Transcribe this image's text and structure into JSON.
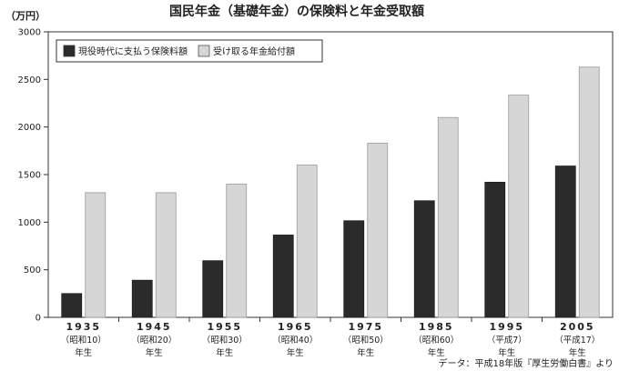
{
  "chart_data": {
    "type": "bar",
    "title": "国民年金（基礎年金）の保険料と年金受取額",
    "unit_label": "（万円）",
    "ylim": [
      0,
      3000
    ],
    "yticks": [
      "0",
      "500",
      "1000",
      "1500",
      "2000",
      "2500",
      "3000"
    ],
    "categories": [
      "1935",
      "1945",
      "1955",
      "1965",
      "1975",
      "1985",
      "1995",
      "2005"
    ],
    "category_eras": [
      "（昭和10）",
      "（昭和20）",
      "（昭和30）",
      "（昭和40）",
      "（昭和50）",
      "（昭和60）",
      "（平成7）",
      "（平成17）"
    ],
    "category_suffix": "年生",
    "series": [
      {
        "name": "現役時代に支払う保険料額",
        "color": "#2b2b2b",
        "values": [
          250,
          390,
          595,
          865,
          1015,
          1225,
          1420,
          1590
        ]
      },
      {
        "name": "受け取る年金給付額",
        "color": "#d6d6d6",
        "values": [
          1310,
          1310,
          1400,
          1600,
          1830,
          2100,
          2335,
          2630
        ]
      }
    ],
    "legend_position": "top-left",
    "grid": false,
    "source": "データ：平成18年版『厚生労働白書』より"
  }
}
